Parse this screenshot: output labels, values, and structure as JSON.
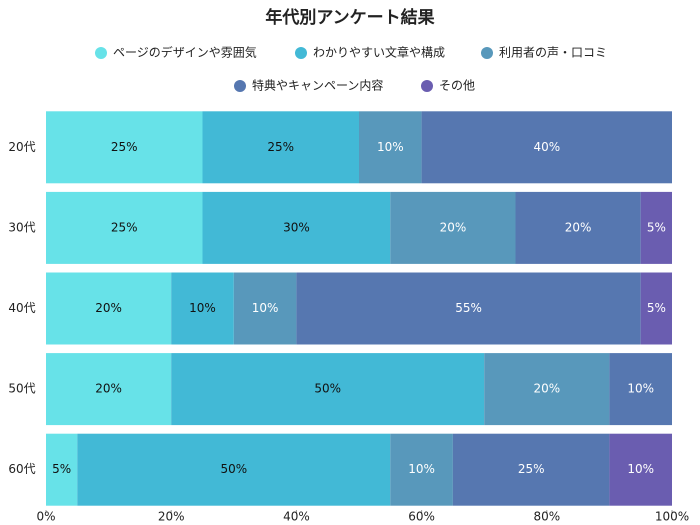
{
  "chart_data": {
    "type": "stacked-bar-horizontal",
    "title": "年代別アンケート結果",
    "categories": [
      "20代",
      "30代",
      "40代",
      "50代",
      "60代"
    ],
    "series": [
      {
        "name": "ページのデザインや雰囲気",
        "color": "#67e2e8",
        "values": [
          25,
          25,
          20,
          20,
          5
        ],
        "value_labels": [
          "25%",
          "25%",
          "20%",
          "20%",
          "5%"
        ]
      },
      {
        "name": "わかりやすい文章や構成",
        "color": "#42b9d6",
        "values": [
          25,
          30,
          10,
          50,
          50
        ],
        "value_labels": [
          "25%",
          "30%",
          "10%",
          "50%",
          "50%"
        ]
      },
      {
        "name": "利用者の声・口コミ",
        "color": "#5898bb",
        "values": [
          10,
          20,
          10,
          20,
          10
        ],
        "value_labels": [
          "10%",
          "20%",
          "10%",
          "20%",
          "10%"
        ]
      },
      {
        "name": "特典やキャンペーン内容",
        "color": "#5677b0",
        "values": [
          40,
          20,
          55,
          10,
          25
        ],
        "value_labels": [
          "40%",
          "20%",
          "55%",
          "10%",
          "25%"
        ]
      },
      {
        "name": "その他",
        "color": "#6a5db0",
        "values": [
          0,
          5,
          5,
          0,
          10
        ],
        "value_labels": [
          null,
          "5%",
          "5%",
          null,
          "10%"
        ]
      }
    ],
    "xlim": [
      0,
      100
    ],
    "xticks": [
      {
        "value": 0,
        "label": "0%"
      },
      {
        "value": 20,
        "label": "20%"
      },
      {
        "value": 40,
        "label": "40%"
      },
      {
        "value": 60,
        "label": "60%"
      },
      {
        "value": 80,
        "label": "80%"
      },
      {
        "value": 100,
        "label": "100%"
      }
    ]
  }
}
